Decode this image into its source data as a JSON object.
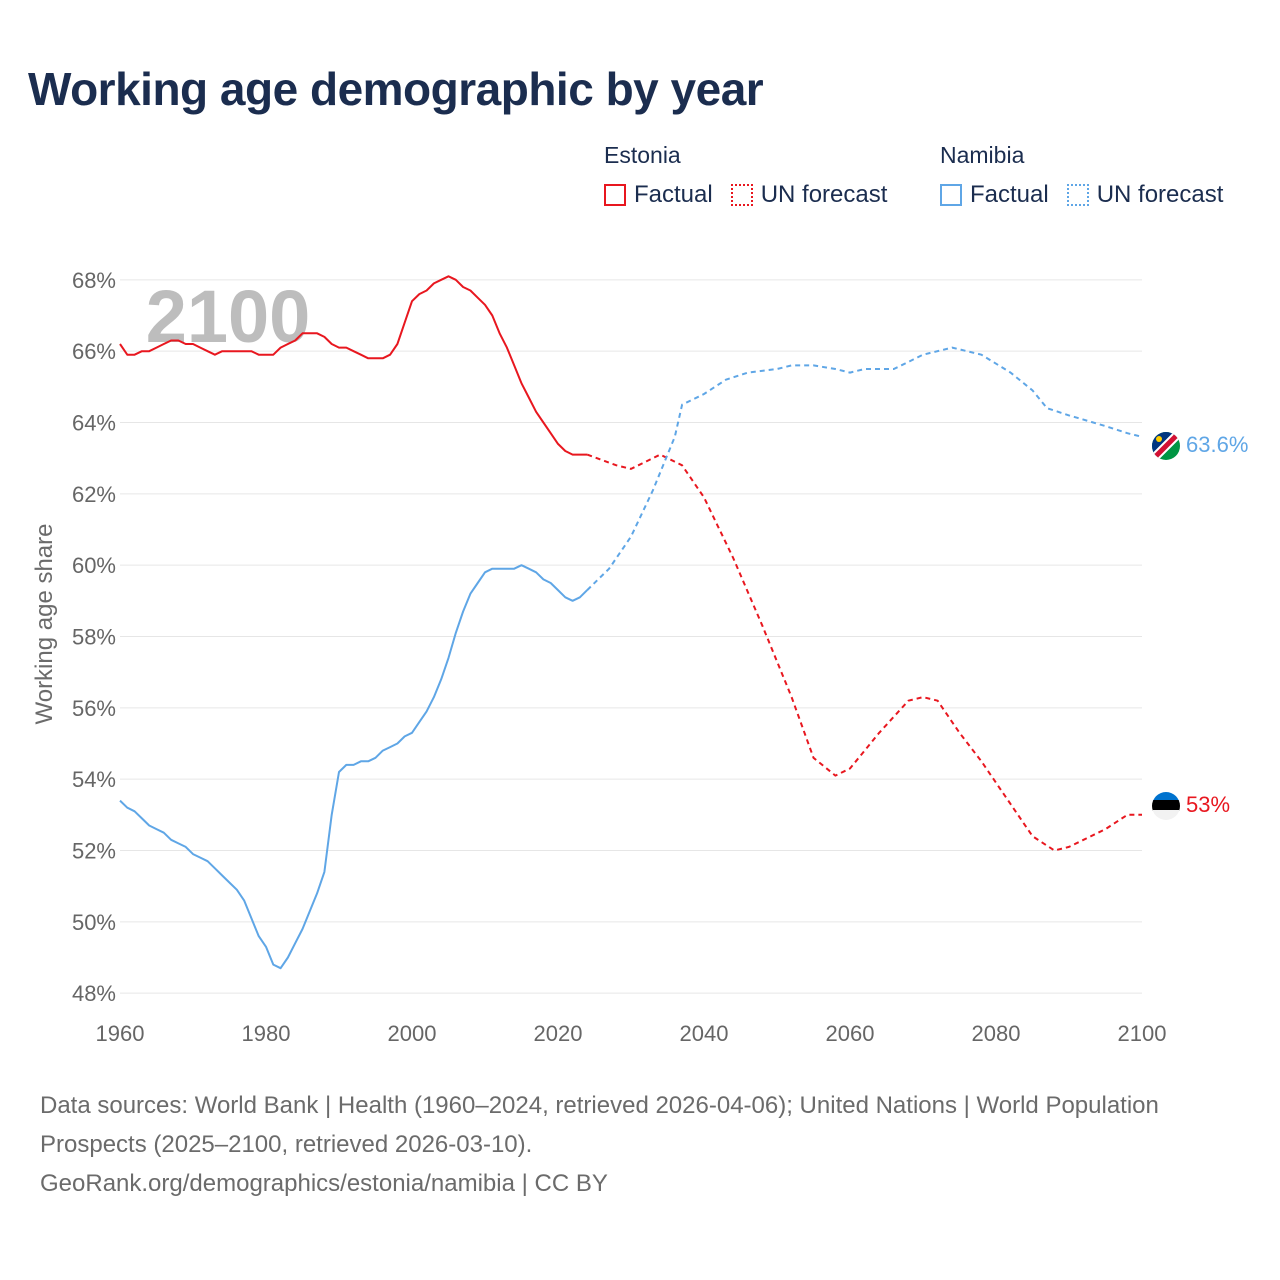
{
  "title": "Working age demographic by year",
  "legend": {
    "factual_label": "Factual",
    "forecast_label": "UN forecast",
    "groups": [
      {
        "country": "Estonia",
        "color": "#e8171f"
      },
      {
        "country": "Namibia",
        "color": "#5fa6e6"
      }
    ]
  },
  "footer": {
    "sources": "Data sources: World Bank | Health (1960–2024, retrieved 2026-04-06); United Nations | World Population Prospects (2025–2100, retrieved 2026-03-10).",
    "link": "GeoRank.org/demographics/estonia/namibia | CC BY"
  },
  "chart_data": {
    "type": "line",
    "title": "Working age demographic by year",
    "xlabel": "",
    "ylabel": "Working age share",
    "year_watermark": "2100",
    "xlim": [
      1960,
      2100
    ],
    "ylim": [
      47.5,
      68.5
    ],
    "x_ticks": [
      1960,
      1980,
      2000,
      2020,
      2040,
      2060,
      2080,
      2100
    ],
    "y_ticks": [
      48,
      50,
      52,
      54,
      56,
      58,
      60,
      62,
      64,
      66,
      68
    ],
    "y_tick_labels": [
      "48%",
      "50%",
      "52%",
      "54%",
      "56%",
      "58%",
      "60%",
      "62%",
      "64%",
      "66%",
      "68%"
    ],
    "grid": true,
    "series": [
      {
        "name": "Estonia",
        "color": "#e8171f",
        "end_label": "53%",
        "end_value": 53.0,
        "factual": {
          "x": [
            1960,
            1961,
            1962,
            1963,
            1964,
            1965,
            1966,
            1967,
            1968,
            1969,
            1970,
            1971,
            1972,
            1973,
            1974,
            1975,
            1976,
            1977,
            1978,
            1979,
            1980,
            1981,
            1982,
            1983,
            1984,
            1985,
            1986,
            1987,
            1988,
            1989,
            1990,
            1991,
            1992,
            1993,
            1994,
            1995,
            1996,
            1997,
            1998,
            1999,
            2000,
            2001,
            2002,
            2003,
            2004,
            2005,
            2006,
            2007,
            2008,
            2009,
            2010,
            2011,
            2012,
            2013,
            2014,
            2015,
            2016,
            2017,
            2018,
            2019,
            2020,
            2021,
            2022,
            2023,
            2024
          ],
          "y": [
            66.2,
            65.9,
            65.9,
            66.0,
            66.0,
            66.1,
            66.2,
            66.3,
            66.3,
            66.2,
            66.2,
            66.1,
            66.0,
            65.9,
            66.0,
            66.0,
            66.0,
            66.0,
            66.0,
            65.9,
            65.9,
            65.9,
            66.1,
            66.2,
            66.3,
            66.5,
            66.5,
            66.5,
            66.4,
            66.2,
            66.1,
            66.1,
            66.0,
            65.9,
            65.8,
            65.8,
            65.8,
            65.9,
            66.2,
            66.8,
            67.4,
            67.6,
            67.7,
            67.9,
            68.0,
            68.1,
            68.0,
            67.8,
            67.7,
            67.5,
            67.3,
            67.0,
            66.5,
            66.1,
            65.6,
            65.1,
            64.7,
            64.3,
            64.0,
            63.7,
            63.4,
            63.2,
            63.1,
            63.1,
            63.1
          ]
        },
        "forecast": {
          "x": [
            2024,
            2028,
            2030,
            2034,
            2037,
            2040,
            2044,
            2048,
            2052,
            2055,
            2058,
            2060,
            2064,
            2068,
            2070,
            2072,
            2075,
            2078,
            2082,
            2085,
            2088,
            2090,
            2095,
            2098,
            2100
          ],
          "y": [
            63.1,
            62.8,
            62.7,
            63.1,
            62.8,
            61.9,
            60.2,
            58.3,
            56.3,
            54.6,
            54.1,
            54.3,
            55.3,
            56.2,
            56.3,
            56.2,
            55.3,
            54.5,
            53.3,
            52.4,
            52.0,
            52.1,
            52.6,
            53.0,
            53.0
          ]
        }
      },
      {
        "name": "Namibia",
        "color": "#5fa6e6",
        "end_label": "63.6%",
        "end_value": 63.6,
        "factual": {
          "x": [
            1960,
            1961,
            1962,
            1963,
            1964,
            1965,
            1966,
            1967,
            1968,
            1969,
            1970,
            1971,
            1972,
            1973,
            1974,
            1975,
            1976,
            1977,
            1978,
            1979,
            1980,
            1981,
            1982,
            1983,
            1984,
            1985,
            1986,
            1987,
            1988,
            1989,
            1990,
            1991,
            1992,
            1993,
            1994,
            1995,
            1996,
            1997,
            1998,
            1999,
            2000,
            2001,
            2002,
            2003,
            2004,
            2005,
            2006,
            2007,
            2008,
            2009,
            2010,
            2011,
            2012,
            2013,
            2014,
            2015,
            2016,
            2017,
            2018,
            2019,
            2020,
            2021,
            2022,
            2023,
            2024
          ],
          "y": [
            53.4,
            53.2,
            53.1,
            52.9,
            52.7,
            52.6,
            52.5,
            52.3,
            52.2,
            52.1,
            51.9,
            51.8,
            51.7,
            51.5,
            51.3,
            51.1,
            50.9,
            50.6,
            50.1,
            49.6,
            49.3,
            48.8,
            48.7,
            49.0,
            49.4,
            49.8,
            50.3,
            50.8,
            51.4,
            53.0,
            54.2,
            54.4,
            54.4,
            54.5,
            54.5,
            54.6,
            54.8,
            54.9,
            55.0,
            55.2,
            55.3,
            55.6,
            55.9,
            56.3,
            56.8,
            57.4,
            58.1,
            58.7,
            59.2,
            59.5,
            59.8,
            59.9,
            59.9,
            59.9,
            59.9,
            60.0,
            59.9,
            59.8,
            59.6,
            59.5,
            59.3,
            59.1,
            59.0,
            59.1,
            59.3
          ]
        },
        "forecast": {
          "x": [
            2024,
            2027,
            2030,
            2033,
            2036,
            2037,
            2040,
            2043,
            2046,
            2050,
            2052,
            2055,
            2058,
            2060,
            2062,
            2066,
            2068,
            2070,
            2074,
            2078,
            2082,
            2085,
            2087,
            2090,
            2095,
            2098,
            2100
          ],
          "y": [
            59.3,
            59.9,
            60.8,
            62.1,
            63.6,
            64.5,
            64.8,
            65.2,
            65.4,
            65.5,
            65.6,
            65.6,
            65.5,
            65.4,
            65.5,
            65.5,
            65.7,
            65.9,
            66.1,
            65.9,
            65.4,
            64.9,
            64.4,
            64.2,
            63.9,
            63.7,
            63.6
          ]
        }
      }
    ]
  }
}
